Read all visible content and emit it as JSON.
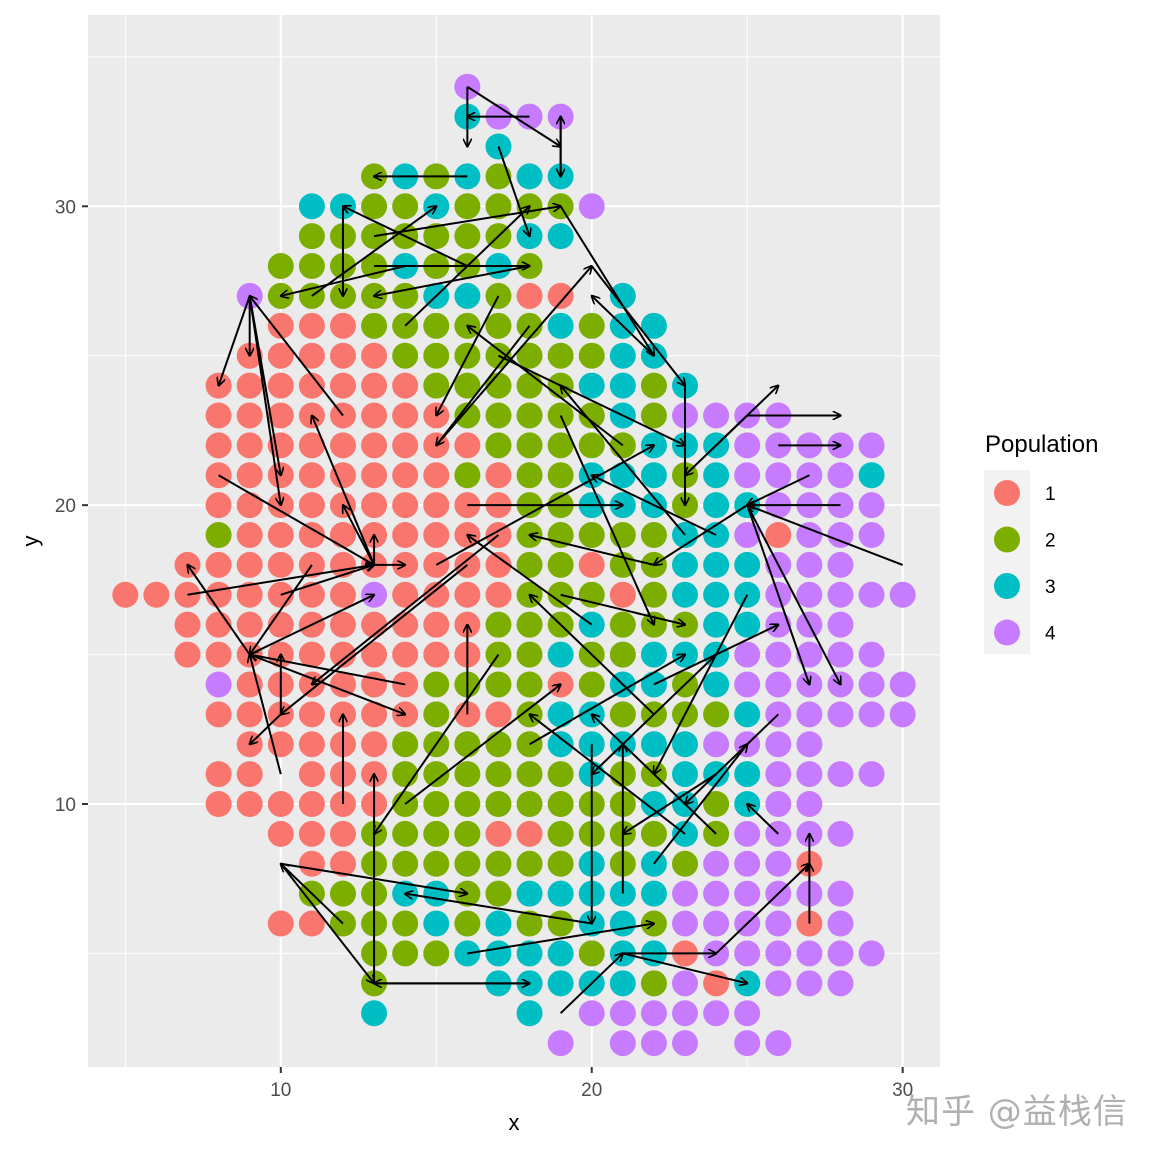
{
  "chart_data": {
    "type": "scatter",
    "subtype": "grid scatter with directed arrows (cell-cell trajectory)",
    "title": "",
    "xlabel": "x",
    "ylabel": "y",
    "xlim": [
      3.8,
      31.2
    ],
    "ylim": [
      1.2,
      36.4
    ],
    "x_ticks": [
      10,
      20,
      30
    ],
    "y_ticks": [
      10,
      20,
      30
    ],
    "grid": true,
    "legend": {
      "title": "Population",
      "position": "right",
      "entries": [
        {
          "label": "1",
          "color": "#F8766D"
        },
        {
          "label": "2",
          "color": "#7CAE00"
        },
        {
          "label": "3",
          "color": "#00BFC4"
        },
        {
          "label": "4",
          "color": "#C77CFF"
        }
      ]
    },
    "grid_points": {
      "x_start": 5,
      "y_top": 34,
      "encoding": "each row string = one y value from y_top downward; character index i = x_start + i; '.' = no point, digit = Population",
      "rows": [
        "...........4..............",
        "...........3444...........",
        "............3.............",
        "........2323233...........",
        "......3322322224..........",
        "......222222233...........",
        ".....222232232............",
        "....42222233211.3.........",
        ".....1112222223233........",
        "....11111222222233........",
        "...1111111222223323.......",
        "...1111111122222324444....",
        "...1111111112222233344444.",
        "...1111111121223332344443.",
        "...1111111111223332334444.",
        "...2111111111222223341444.",
        "..1111111111122122333444..",
        "11111111411112221233344444",
        "..1111111111222322233444..",
        "..11111111112232233344444.",
        "...41111112222123323444444",
        "...11111112112332222344444",
        "....1111122222333334444...",
        "...11.1112222223223334444.",
        "...11111122222222332344...",
        ".....1112222112222324444..",
        "......11222222232324441...",
        "......222332233333444444..",
        ".....1122232322332444414..",
        "........22233332331444444.",
        "........2...333332413444..",
        "........3....3.444444.....",
        "..............4.444.44...."
      ]
    },
    "arrows_sample": [
      {
        "from": [
          9,
          27
        ],
        "to": [
          8,
          24
        ]
      },
      {
        "from": [
          9,
          27
        ],
        "to": [
          9,
          25
        ]
      },
      {
        "from": [
          9,
          27
        ],
        "to": [
          10,
          20
        ]
      },
      {
        "from": [
          9,
          27
        ],
        "to": [
          10,
          21
        ]
      },
      {
        "from": [
          12,
          23
        ],
        "to": [
          9,
          27
        ]
      },
      {
        "from": [
          13,
          18
        ],
        "to": [
          11,
          23
        ]
      },
      {
        "from": [
          13,
          18
        ],
        "to": [
          12,
          20
        ]
      },
      {
        "from": [
          13,
          18
        ],
        "to": [
          13,
          19
        ]
      },
      {
        "from": [
          13,
          18
        ],
        "to": [
          14,
          18
        ]
      },
      {
        "from": [
          8,
          21
        ],
        "to": [
          13,
          18
        ]
      },
      {
        "from": [
          7,
          17
        ],
        "to": [
          13,
          18
        ]
      },
      {
        "from": [
          10,
          17
        ],
        "to": [
          13,
          18
        ]
      },
      {
        "from": [
          9,
          15
        ],
        "to": [
          7,
          18
        ]
      },
      {
        "from": [
          9,
          15
        ],
        "to": [
          13,
          17
        ]
      },
      {
        "from": [
          11,
          18
        ],
        "to": [
          9,
          15
        ]
      },
      {
        "from": [
          9,
          15
        ],
        "to": [
          14,
          13
        ]
      },
      {
        "from": [
          14,
          14
        ],
        "to": [
          9,
          15
        ]
      },
      {
        "from": [
          10,
          13
        ],
        "to": [
          9,
          12
        ]
      },
      {
        "from": [
          10,
          13
        ],
        "to": [
          10,
          15
        ]
      },
      {
        "from": [
          16,
          18
        ],
        "to": [
          10,
          13
        ]
      },
      {
        "from": [
          10,
          11
        ],
        "to": [
          9,
          15
        ]
      },
      {
        "from": [
          17,
          19
        ],
        "to": [
          11,
          14
        ]
      },
      {
        "from": [
          16,
          34
        ],
        "to": [
          19,
          32
        ]
      },
      {
        "from": [
          16,
          34
        ],
        "to": [
          16,
          32
        ]
      },
      {
        "from": [
          18,
          33
        ],
        "to": [
          16,
          33
        ]
      },
      {
        "from": [
          19,
          33
        ],
        "to": [
          19,
          31
        ]
      },
      {
        "from": [
          19,
          31
        ],
        "to": [
          19,
          33
        ]
      },
      {
        "from": [
          16,
          31
        ],
        "to": [
          13,
          31
        ]
      },
      {
        "from": [
          17,
          32
        ],
        "to": [
          18,
          29
        ]
      },
      {
        "from": [
          12,
          30
        ],
        "to": [
          12,
          27
        ]
      },
      {
        "from": [
          14,
          28
        ],
        "to": [
          10,
          27
        ]
      },
      {
        "from": [
          16,
          28
        ],
        "to": [
          12,
          30
        ]
      },
      {
        "from": [
          19,
          30
        ],
        "to": [
          22,
          25
        ]
      },
      {
        "from": [
          20,
          28
        ],
        "to": [
          23,
          24
        ]
      },
      {
        "from": [
          22,
          25
        ],
        "to": [
          20,
          27
        ]
      },
      {
        "from": [
          25,
          23
        ],
        "to": [
          28,
          23
        ]
      },
      {
        "from": [
          24,
          22
        ],
        "to": [
          26,
          24
        ]
      },
      {
        "from": [
          25,
          23
        ],
        "to": [
          23,
          21
        ]
      },
      {
        "from": [
          26,
          22
        ],
        "to": [
          28,
          22
        ]
      },
      {
        "from": [
          27,
          21
        ],
        "to": [
          25,
          20
        ]
      },
      {
        "from": [
          28,
          20
        ],
        "to": [
          25,
          20
        ]
      },
      {
        "from": [
          25,
          20
        ],
        "to": [
          27,
          14
        ]
      },
      {
        "from": [
          25,
          20
        ],
        "to": [
          28,
          14
        ]
      },
      {
        "from": [
          30,
          18
        ],
        "to": [
          25,
          20
        ]
      },
      {
        "from": [
          25,
          20
        ],
        "to": [
          22,
          18
        ]
      },
      {
        "from": [
          27,
          8
        ],
        "to": [
          27,
          9
        ]
      },
      {
        "from": [
          27,
          6
        ],
        "to": [
          27,
          8
        ]
      },
      {
        "from": [
          24,
          5
        ],
        "to": [
          27,
          8
        ]
      },
      {
        "from": [
          26,
          9
        ],
        "to": [
          25,
          10
        ]
      },
      {
        "from": [
          21,
          5
        ],
        "to": [
          25,
          4
        ]
      },
      {
        "from": [
          21,
          5
        ],
        "to": [
          24,
          5
        ]
      },
      {
        "from": [
          19,
          3
        ],
        "to": [
          21,
          5
        ]
      },
      {
        "from": [
          18,
          4
        ],
        "to": [
          13,
          4
        ]
      },
      {
        "from": [
          13,
          4
        ],
        "to": [
          18,
          4
        ]
      },
      {
        "from": [
          10,
          8
        ],
        "to": [
          13,
          4
        ]
      },
      {
        "from": [
          13,
          4
        ],
        "to": [
          13,
          11
        ]
      },
      {
        "from": [
          20,
          6
        ],
        "to": [
          14,
          7
        ]
      },
      {
        "from": [
          10,
          8
        ],
        "to": [
          16,
          7
        ]
      },
      {
        "from": [
          12,
          6
        ],
        "to": [
          10,
          8
        ]
      },
      {
        "from": [
          16,
          5
        ],
        "to": [
          22,
          6
        ]
      },
      {
        "from": [
          15,
          18
        ],
        "to": [
          22,
          22
        ]
      },
      {
        "from": [
          16,
          20
        ],
        "to": [
          21,
          20
        ]
      },
      {
        "from": [
          20,
          16
        ],
        "to": [
          16,
          19
        ]
      },
      {
        "from": [
          18,
          12
        ],
        "to": [
          23,
          15
        ]
      },
      {
        "from": [
          22,
          13
        ],
        "to": [
          18,
          17
        ]
      },
      {
        "from": [
          19,
          23
        ],
        "to": [
          22,
          16
        ]
      },
      {
        "from": [
          17,
          25
        ],
        "to": [
          23,
          22
        ]
      },
      {
        "from": [
          21,
          22
        ],
        "to": [
          16,
          26
        ]
      },
      {
        "from": [
          23,
          19
        ],
        "to": [
          19,
          24
        ]
      },
      {
        "from": [
          24,
          15
        ],
        "to": [
          20,
          11
        ]
      },
      {
        "from": [
          15,
          22
        ],
        "to": [
          20,
          28
        ]
      },
      {
        "from": [
          18,
          26
        ],
        "to": [
          15,
          22
        ]
      },
      {
        "from": [
          24,
          11
        ],
        "to": [
          21,
          9
        ]
      },
      {
        "from": [
          22,
          8
        ],
        "to": [
          25,
          12
        ]
      },
      {
        "from": [
          20,
          12
        ],
        "to": [
          20,
          6
        ]
      },
      {
        "from": [
          21,
          7
        ],
        "to": [
          21,
          12
        ]
      },
      {
        "from": [
          23,
          9
        ],
        "to": [
          18,
          13
        ]
      },
      {
        "from": [
          14,
          10
        ],
        "to": [
          19,
          14
        ]
      },
      {
        "from": [
          17,
          15
        ],
        "to": [
          13,
          9
        ]
      },
      {
        "from": [
          12,
          10
        ],
        "to": [
          12,
          13
        ]
      },
      {
        "from": [
          16,
          13
        ],
        "to": [
          16,
          16
        ]
      },
      {
        "from": [
          23,
          24
        ],
        "to": [
          23,
          20
        ]
      },
      {
        "from": [
          24,
          19
        ],
        "to": [
          20,
          21
        ]
      },
      {
        "from": [
          17,
          27
        ],
        "to": [
          15,
          23
        ]
      },
      {
        "from": [
          13,
          29
        ],
        "to": [
          19,
          30
        ]
      },
      {
        "from": [
          14,
          26
        ],
        "to": [
          18,
          30
        ]
      },
      {
        "from": [
          11,
          27
        ],
        "to": [
          15,
          30
        ]
      },
      {
        "from": [
          18,
          28
        ],
        "to": [
          13,
          27
        ]
      },
      {
        "from": [
          13,
          28
        ],
        "to": [
          18,
          28
        ]
      },
      {
        "from": [
          22,
          18
        ],
        "to": [
          18,
          19
        ]
      },
      {
        "from": [
          19,
          17
        ],
        "to": [
          23,
          16
        ]
      },
      {
        "from": [
          22,
          14
        ],
        "to": [
          26,
          16
        ]
      },
      {
        "from": [
          25,
          17
        ],
        "to": [
          22,
          11
        ]
      },
      {
        "from": [
          26,
          13
        ],
        "to": [
          23,
          10
        ]
      },
      {
        "from": [
          24,
          9
        ],
        "to": [
          20,
          13
        ]
      }
    ],
    "annotations": []
  },
  "watermark": "知乎 @益栈信"
}
